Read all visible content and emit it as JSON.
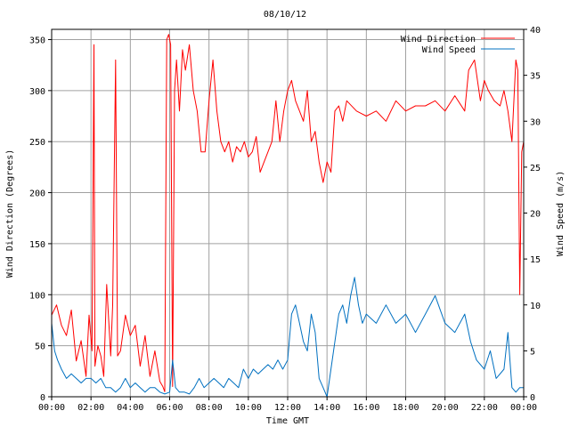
{
  "chart_data": {
    "type": "line",
    "title": "08/10/12",
    "xlabel": "Time GMT",
    "ylabel_left": "Wind Direction (Degrees)",
    "ylabel_right": "Wind Speed (m/s)",
    "x_ticks": [
      "00:00",
      "02:00",
      "04:00",
      "06:00",
      "08:00",
      "10:00",
      "12:00",
      "14:00",
      "16:00",
      "18:00",
      "20:00",
      "22:00",
      "00:00"
    ],
    "xlim_hours": [
      0,
      24
    ],
    "ylim_left": [
      0,
      360
    ],
    "yticks_left": [
      0,
      50,
      100,
      150,
      200,
      250,
      300,
      350
    ],
    "ylim_right": [
      0,
      40
    ],
    "yticks_right": [
      0,
      5,
      10,
      15,
      20,
      25,
      30,
      35,
      40
    ],
    "grid": true,
    "legend_placement": "top-right",
    "series": [
      {
        "name": "Wind Direction",
        "axis": "left",
        "color": "#ff0000",
        "x": [
          0,
          0.25,
          0.5,
          0.75,
          1,
          1.25,
          1.5,
          1.75,
          1.9,
          2.05,
          2.15,
          2.2,
          2.35,
          2.5,
          2.65,
          2.8,
          3,
          3.1,
          3.25,
          3.35,
          3.5,
          3.75,
          4,
          4.25,
          4.5,
          4.75,
          5,
          5.25,
          5.5,
          5.65,
          5.75,
          5.85,
          5.95,
          6.05,
          6.15,
          6.25,
          6.35,
          6.5,
          6.65,
          6.8,
          7,
          7.2,
          7.4,
          7.6,
          7.8,
          8,
          8.2,
          8.4,
          8.6,
          8.8,
          9,
          9.2,
          9.4,
          9.6,
          9.8,
          10,
          10.2,
          10.4,
          10.6,
          10.8,
          11,
          11.2,
          11.4,
          11.6,
          11.8,
          12,
          12.2,
          12.4,
          12.6,
          12.8,
          13,
          13.2,
          13.4,
          13.6,
          13.8,
          14,
          14.2,
          14.4,
          14.6,
          14.8,
          15,
          15.5,
          16,
          16.5,
          17,
          17.5,
          18,
          18.5,
          19,
          19.5,
          20,
          20.5,
          21,
          21.2,
          21.5,
          21.8,
          22,
          22.2,
          22.5,
          22.8,
          23,
          23.2,
          23.4,
          23.6,
          23.7,
          23.8,
          23.9,
          24
        ],
        "values": [
          80,
          90,
          70,
          60,
          85,
          35,
          55,
          20,
          80,
          45,
          345,
          30,
          50,
          40,
          20,
          110,
          40,
          90,
          330,
          40,
          45,
          80,
          60,
          70,
          30,
          60,
          20,
          45,
          15,
          10,
          5,
          350,
          355,
          345,
          10,
          300,
          330,
          280,
          340,
          320,
          345,
          300,
          280,
          240,
          240,
          290,
          330,
          280,
          250,
          240,
          250,
          230,
          245,
          240,
          250,
          235,
          240,
          255,
          220,
          230,
          240,
          250,
          290,
          250,
          280,
          300,
          310,
          290,
          280,
          270,
          300,
          250,
          260,
          230,
          210,
          230,
          220,
          280,
          285,
          270,
          290,
          280,
          275,
          280,
          270,
          290,
          280,
          285,
          285,
          290,
          280,
          295,
          280,
          320,
          330,
          290,
          310,
          300,
          290,
          285,
          300,
          280,
          250,
          330,
          320,
          100,
          240,
          250
        ]
      },
      {
        "name": "Wind Speed",
        "axis": "right",
        "color": "#0070c0",
        "x": [
          0,
          0.15,
          0.3,
          0.5,
          0.75,
          1,
          1.25,
          1.5,
          1.75,
          2,
          2.25,
          2.5,
          2.75,
          3,
          3.25,
          3.5,
          3.75,
          4,
          4.25,
          4.5,
          4.75,
          5,
          5.25,
          5.5,
          5.75,
          6,
          6.15,
          6.3,
          6.5,
          6.75,
          7,
          7.25,
          7.5,
          7.75,
          8,
          8.25,
          8.5,
          8.75,
          9,
          9.25,
          9.5,
          9.75,
          10,
          10.25,
          10.5,
          10.75,
          11,
          11.25,
          11.5,
          11.75,
          12,
          12.2,
          12.4,
          12.6,
          12.8,
          13,
          13.2,
          13.4,
          13.6,
          13.8,
          14,
          14.2,
          14.4,
          14.6,
          14.8,
          15,
          15.2,
          15.4,
          15.6,
          15.8,
          16,
          16.5,
          17,
          17.5,
          18,
          18.5,
          19,
          19.5,
          20,
          20.5,
          21,
          21.3,
          21.6,
          22,
          22.3,
          22.6,
          23,
          23.2,
          23.4,
          23.6,
          23.8,
          24
        ],
        "values": [
          8,
          5,
          4,
          3,
          2,
          2.5,
          2,
          1.5,
          2,
          2,
          1.5,
          2,
          1,
          1,
          0.5,
          1,
          2,
          1,
          1.5,
          1,
          0.5,
          1,
          1,
          0.5,
          0.3,
          0.5,
          4,
          1,
          0.5,
          0.5,
          0.3,
          1,
          2,
          1,
          1.5,
          2,
          1.5,
          1,
          2,
          1.5,
          1,
          3,
          2,
          3,
          2.5,
          3,
          3.5,
          3,
          4,
          3,
          4,
          9,
          10,
          8,
          6,
          5,
          9,
          7,
          2,
          1,
          0,
          3,
          6,
          9,
          10,
          8,
          11,
          13,
          10,
          8,
          9,
          8,
          10,
          8,
          9,
          7,
          9,
          11,
          8,
          7,
          9,
          6,
          4,
          3,
          5,
          2,
          3,
          7,
          1,
          0.5,
          1,
          1
        ]
      }
    ]
  }
}
